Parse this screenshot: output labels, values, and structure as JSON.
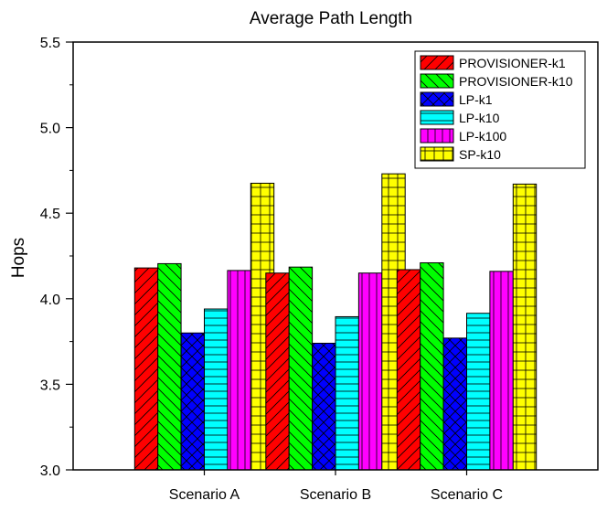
{
  "chart_data": {
    "type": "bar",
    "title": "Average Path Length",
    "xlabel": "",
    "ylabel": "Hops",
    "ylim": [
      3.0,
      5.5
    ],
    "yticks": [
      "3.0",
      "3.5",
      "4.0",
      "4.5",
      "5.0",
      "5.5"
    ],
    "categories": [
      "Scenario A",
      "Scenario B",
      "Scenario C"
    ],
    "legend_position": "top-right",
    "series": [
      {
        "name": "PROVISIONER-k1",
        "color": "#ff0000",
        "pattern": "diagonal-up",
        "values": [
          4.18,
          4.15,
          4.17
        ]
      },
      {
        "name": "PROVISIONER-k10",
        "color": "#00ff00",
        "pattern": "diagonal-down",
        "values": [
          4.205,
          4.185,
          4.21
        ]
      },
      {
        "name": "LP-k1",
        "color": "#0000ff",
        "pattern": "crosshatch-diagonal",
        "values": [
          3.8,
          3.74,
          3.77
        ]
      },
      {
        "name": "LP-k10",
        "color": "#00ffff",
        "pattern": "horizontal",
        "values": [
          3.94,
          3.895,
          3.915
        ]
      },
      {
        "name": "LP-k100",
        "color": "#ff00ff",
        "pattern": "vertical",
        "values": [
          4.165,
          4.15,
          4.16
        ]
      },
      {
        "name": "SP-k10",
        "color": "#ffff00",
        "pattern": "grid",
        "values": [
          4.675,
          4.73,
          4.67
        ]
      }
    ]
  }
}
